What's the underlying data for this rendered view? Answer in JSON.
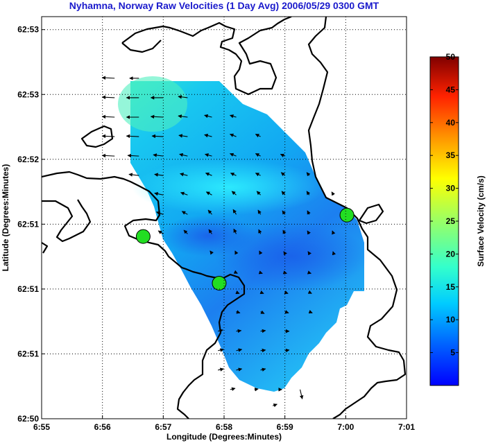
{
  "chart_data": {
    "type": "heatmap",
    "title": "Nyhamna, Norway Raw Velocities (1 Day Avg) 2006/05/29 0300 GMT",
    "xlabel": "Longitude (Degrees:Minutes)",
    "ylabel": "Latitude (Degrees:Minutes)",
    "x_ticks": [
      {
        "v": 55,
        "label": "6:55"
      },
      {
        "v": 56,
        "label": "6:56"
      },
      {
        "v": 57,
        "label": "6:57"
      },
      {
        "v": 58,
        "label": "6:58"
      },
      {
        "v": 59,
        "label": "6:59"
      },
      {
        "v": 60,
        "label": "7:00"
      },
      {
        "v": 61,
        "label": "7:01"
      }
    ],
    "y_ticks": [
      {
        "v": 0,
        "label": "62:50"
      },
      {
        "v": 1,
        "label": "62:51"
      },
      {
        "v": 2,
        "label": "62:51"
      },
      {
        "v": 3,
        "label": "62:51"
      },
      {
        "v": 4,
        "label": "62:52"
      },
      {
        "v": 5,
        "label": "62:53"
      },
      {
        "v": 6,
        "label": "62:53"
      }
    ],
    "xlim": [
      55,
      61
    ],
    "ylim": [
      0,
      6.2
    ],
    "grid": true,
    "colorbar": {
      "label": "Surface Velocity (cm/s)",
      "range": [
        0,
        50
      ],
      "ticks": [
        5,
        10,
        15,
        20,
        25,
        30,
        35,
        40,
        45,
        50
      ],
      "colormap": "jet"
    },
    "stations": [
      {
        "x": 56.67,
        "y": 2.81
      },
      {
        "x": 57.92,
        "y": 2.09
      },
      {
        "x": 60.02,
        "y": 3.14
      }
    ],
    "arrows": [
      {
        "x": 56.2,
        "y": 5.25,
        "u": -2,
        "v": 0.1
      },
      {
        "x": 56.6,
        "y": 5.25,
        "u": -1.5,
        "v": 0
      },
      {
        "x": 56.2,
        "y": 4.95,
        "u": -2,
        "v": 0.1
      },
      {
        "x": 56.6,
        "y": 4.95,
        "u": -2,
        "v": 0
      },
      {
        "x": 57.0,
        "y": 4.95,
        "u": -2,
        "v": 0
      },
      {
        "x": 57.4,
        "y": 4.95,
        "u": -1.5,
        "v": 0.2
      },
      {
        "x": 56.2,
        "y": 4.65,
        "u": -2,
        "v": 0.1
      },
      {
        "x": 56.6,
        "y": 4.65,
        "u": -2,
        "v": 0
      },
      {
        "x": 57.0,
        "y": 4.65,
        "u": -2,
        "v": 0.1
      },
      {
        "x": 57.4,
        "y": 4.65,
        "u": -1.5,
        "v": 0.2
      },
      {
        "x": 57.8,
        "y": 4.65,
        "u": -1.2,
        "v": 0.3
      },
      {
        "x": 58.2,
        "y": 4.65,
        "u": -1,
        "v": 0.3
      },
      {
        "x": 56.2,
        "y": 4.35,
        "u": -2,
        "v": 0.1
      },
      {
        "x": 56.6,
        "y": 4.35,
        "u": -2,
        "v": 0.1
      },
      {
        "x": 57.0,
        "y": 4.35,
        "u": -1.8,
        "v": 0.1
      },
      {
        "x": 57.4,
        "y": 4.35,
        "u": -1.4,
        "v": 0.2
      },
      {
        "x": 57.8,
        "y": 4.35,
        "u": -1.2,
        "v": 0.3
      },
      {
        "x": 58.2,
        "y": 4.35,
        "u": -1,
        "v": 0.4
      },
      {
        "x": 58.6,
        "y": 4.35,
        "u": -0.8,
        "v": 0.4
      },
      {
        "x": 56.2,
        "y": 4.05,
        "u": -2,
        "v": 0.1
      },
      {
        "x": 56.6,
        "y": 4.05,
        "u": -1.8,
        "v": 0.1
      },
      {
        "x": 57.0,
        "y": 4.05,
        "u": -1.6,
        "v": 0.2
      },
      {
        "x": 57.4,
        "y": 4.05,
        "u": -1.3,
        "v": 0.3
      },
      {
        "x": 57.8,
        "y": 4.05,
        "u": -1.1,
        "v": 0.3
      },
      {
        "x": 58.2,
        "y": 4.05,
        "u": -1,
        "v": 0.4
      },
      {
        "x": 58.6,
        "y": 4.05,
        "u": -0.8,
        "v": 0.4
      },
      {
        "x": 59.0,
        "y": 4.05,
        "u": -0.7,
        "v": 0.3
      },
      {
        "x": 56.6,
        "y": 3.75,
        "u": -1.6,
        "v": 0.2
      },
      {
        "x": 57.0,
        "y": 3.75,
        "u": -1.4,
        "v": 0.2
      },
      {
        "x": 57.4,
        "y": 3.75,
        "u": -1.2,
        "v": 0.3
      },
      {
        "x": 57.8,
        "y": 3.75,
        "u": -1,
        "v": 0.4
      },
      {
        "x": 58.2,
        "y": 3.75,
        "u": -0.9,
        "v": 0.4
      },
      {
        "x": 58.6,
        "y": 3.75,
        "u": -0.8,
        "v": 0.4
      },
      {
        "x": 59.0,
        "y": 3.75,
        "u": -0.6,
        "v": 0.5
      },
      {
        "x": 59.4,
        "y": 3.75,
        "u": -0.4,
        "v": 0.5
      },
      {
        "x": 57.0,
        "y": 3.45,
        "u": -1.4,
        "v": 0.3
      },
      {
        "x": 57.4,
        "y": 3.45,
        "u": -1.1,
        "v": 0.4
      },
      {
        "x": 57.8,
        "y": 3.45,
        "u": -0.9,
        "v": 0.5
      },
      {
        "x": 58.2,
        "y": 3.45,
        "u": -0.7,
        "v": 0.6
      },
      {
        "x": 58.6,
        "y": 3.45,
        "u": -0.6,
        "v": 0.6
      },
      {
        "x": 59.0,
        "y": 3.45,
        "u": -0.5,
        "v": 0.6
      },
      {
        "x": 59.4,
        "y": 3.45,
        "u": -0.4,
        "v": 0.6
      },
      {
        "x": 59.8,
        "y": 3.45,
        "u": -0.3,
        "v": 0.5
      },
      {
        "x": 57.0,
        "y": 3.15,
        "u": -1.1,
        "v": 0.4
      },
      {
        "x": 57.4,
        "y": 3.15,
        "u": -0.9,
        "v": 0.5
      },
      {
        "x": 57.8,
        "y": 3.15,
        "u": -0.6,
        "v": 0.7
      },
      {
        "x": 58.2,
        "y": 3.15,
        "u": -0.5,
        "v": 0.8
      },
      {
        "x": 58.6,
        "y": 3.15,
        "u": -0.4,
        "v": 0.7
      },
      {
        "x": 59.0,
        "y": 3.15,
        "u": -0.4,
        "v": 0.6
      },
      {
        "x": 59.4,
        "y": 3.15,
        "u": -0.3,
        "v": 0.6
      },
      {
        "x": 57.0,
        "y": 2.85,
        "u": -0.8,
        "v": 0.5
      },
      {
        "x": 57.4,
        "y": 2.85,
        "u": -0.6,
        "v": 0.6
      },
      {
        "x": 57.8,
        "y": 2.85,
        "u": -0.5,
        "v": 0.7
      },
      {
        "x": 58.2,
        "y": 2.85,
        "u": -0.4,
        "v": 0.8
      },
      {
        "x": 58.6,
        "y": 2.85,
        "u": -0.3,
        "v": 0.7
      },
      {
        "x": 59.0,
        "y": 2.85,
        "u": -0.3,
        "v": 0.6
      },
      {
        "x": 59.4,
        "y": 2.85,
        "u": -0.3,
        "v": 0.5
      },
      {
        "x": 59.8,
        "y": 2.85,
        "u": -0.2,
        "v": 0.5
      },
      {
        "x": 57.8,
        "y": 2.55,
        "u": -0.3,
        "v": 0.4
      },
      {
        "x": 58.2,
        "y": 2.55,
        "u": -0.2,
        "v": 0.4
      },
      {
        "x": 58.6,
        "y": 2.55,
        "u": -0.2,
        "v": 0.4
      },
      {
        "x": 59.0,
        "y": 2.55,
        "u": -0.2,
        "v": 0.3
      },
      {
        "x": 59.4,
        "y": 2.55,
        "u": -0.2,
        "v": 0.3
      },
      {
        "x": 59.8,
        "y": 2.55,
        "u": -0.1,
        "v": 0.3
      },
      {
        "x": 58.2,
        "y": 2.25,
        "u": 0.2,
        "v": -0.1
      },
      {
        "x": 58.6,
        "y": 2.25,
        "u": 0.3,
        "v": -0.1
      },
      {
        "x": 59.0,
        "y": 2.25,
        "u": 0.3,
        "v": -0.1
      },
      {
        "x": 59.4,
        "y": 2.25,
        "u": 0.3,
        "v": -0.1
      },
      {
        "x": 58.2,
        "y": 1.95,
        "u": 0.5,
        "v": -0.2
      },
      {
        "x": 58.6,
        "y": 1.95,
        "u": 0.5,
        "v": -0.2
      },
      {
        "x": 59.0,
        "y": 1.95,
        "u": 0.5,
        "v": -0.2
      },
      {
        "x": 59.4,
        "y": 1.95,
        "u": 0.4,
        "v": -0.2
      },
      {
        "x": 58.2,
        "y": 1.65,
        "u": 0.6,
        "v": -0.2
      },
      {
        "x": 58.6,
        "y": 1.65,
        "u": 0.6,
        "v": -0.3
      },
      {
        "x": 59.0,
        "y": 1.65,
        "u": 0.6,
        "v": -0.2
      },
      {
        "x": 59.4,
        "y": 1.65,
        "u": 0.5,
        "v": -0.2
      },
      {
        "x": 57.9,
        "y": 1.35,
        "u": 0.8,
        "v": 0.2
      },
      {
        "x": 58.2,
        "y": 1.35,
        "u": 0.8,
        "v": 0.1
      },
      {
        "x": 58.6,
        "y": 1.35,
        "u": 0.8,
        "v": 0.1
      },
      {
        "x": 59.0,
        "y": 1.35,
        "u": 0.7,
        "v": 0
      },
      {
        "x": 57.9,
        "y": 1.05,
        "u": 0.9,
        "v": 0.2
      },
      {
        "x": 58.2,
        "y": 1.05,
        "u": 0.9,
        "v": 0.2
      },
      {
        "x": 58.6,
        "y": 1.05,
        "u": 0.8,
        "v": 0.1
      },
      {
        "x": 59.0,
        "y": 1.05,
        "u": 0.7,
        "v": 0.1
      },
      {
        "x": 57.9,
        "y": 0.75,
        "u": 0.9,
        "v": 0.2
      },
      {
        "x": 58.2,
        "y": 0.75,
        "u": 0.9,
        "v": 0.2
      },
      {
        "x": 58.6,
        "y": 0.75,
        "u": 0.8,
        "v": 0.2
      },
      {
        "x": 58.1,
        "y": 0.45,
        "u": 0.8,
        "v": 0.2
      },
      {
        "x": 58.5,
        "y": 0.45,
        "u": 0.6,
        "v": 0.1
      },
      {
        "x": 58.9,
        "y": 0.45,
        "u": 0.5,
        "v": 0
      },
      {
        "x": 59.25,
        "y": 0.45,
        "u": 0.35,
        "v": -1.5
      },
      {
        "x": 58.8,
        "y": 0.2,
        "u": 0.7,
        "v": 0.25
      }
    ]
  }
}
